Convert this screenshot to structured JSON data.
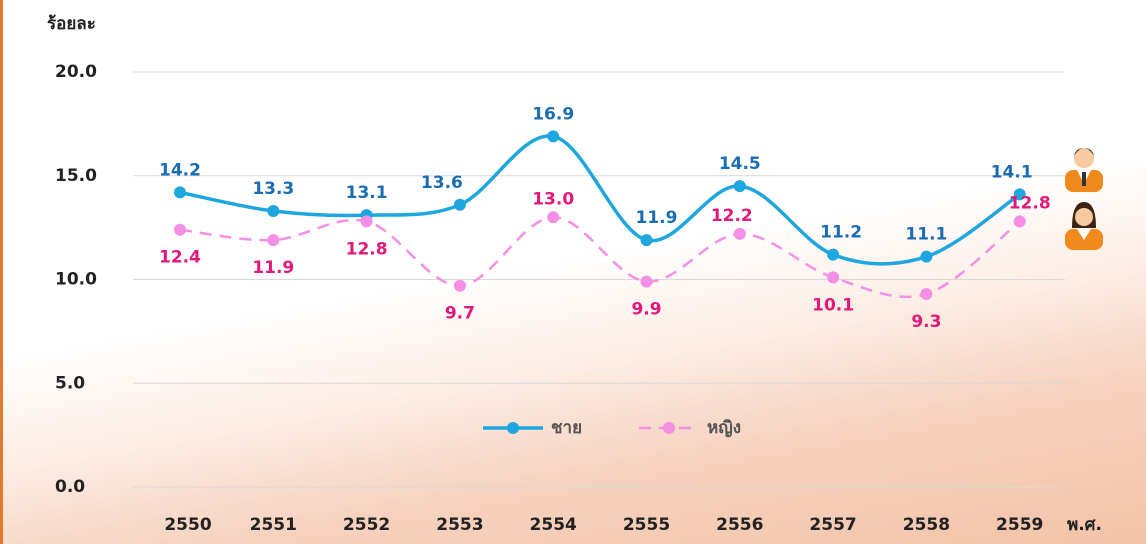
{
  "chart_data": {
    "type": "line",
    "y_label": "ร้อยละ",
    "x_label": "พ.ศ.",
    "categories": [
      "2550",
      "2551",
      "2552",
      "2553",
      "2554",
      "2555",
      "2556",
      "2557",
      "2558",
      "2559"
    ],
    "series": [
      {
        "name": "ชาย",
        "color": "#1ea6df",
        "label_color": "#1a6db3",
        "dashed": false,
        "values": [
          14.2,
          13.3,
          13.1,
          13.6,
          16.9,
          11.9,
          14.5,
          11.2,
          11.1,
          14.1
        ],
        "value_labels": [
          "14.2",
          "13.3",
          "13.1",
          "13.6",
          "16.9",
          "11.9",
          "14.5",
          "11.2",
          "11.1",
          "14.1"
        ]
      },
      {
        "name": "หญิง",
        "color": "#f48fe6",
        "label_color": "#e3187a",
        "dashed": true,
        "values": [
          12.4,
          11.9,
          12.8,
          9.7,
          13.0,
          9.9,
          12.2,
          10.1,
          9.3,
          12.8
        ],
        "value_labels": [
          "12.4",
          "11.9",
          "12.8",
          "9.7",
          "13.0",
          "9.9",
          "12.2",
          "10.1",
          "9.3",
          "12.8"
        ]
      }
    ],
    "ylim": [
      0,
      20
    ],
    "yticks": [
      {
        "value": 0,
        "label": "0.0"
      },
      {
        "value": 5,
        "label": "5.0"
      },
      {
        "value": 10,
        "label": "10.0"
      },
      {
        "value": 15,
        "label": "15.0"
      },
      {
        "value": 20,
        "label": "20.0"
      }
    ],
    "grid": true
  }
}
